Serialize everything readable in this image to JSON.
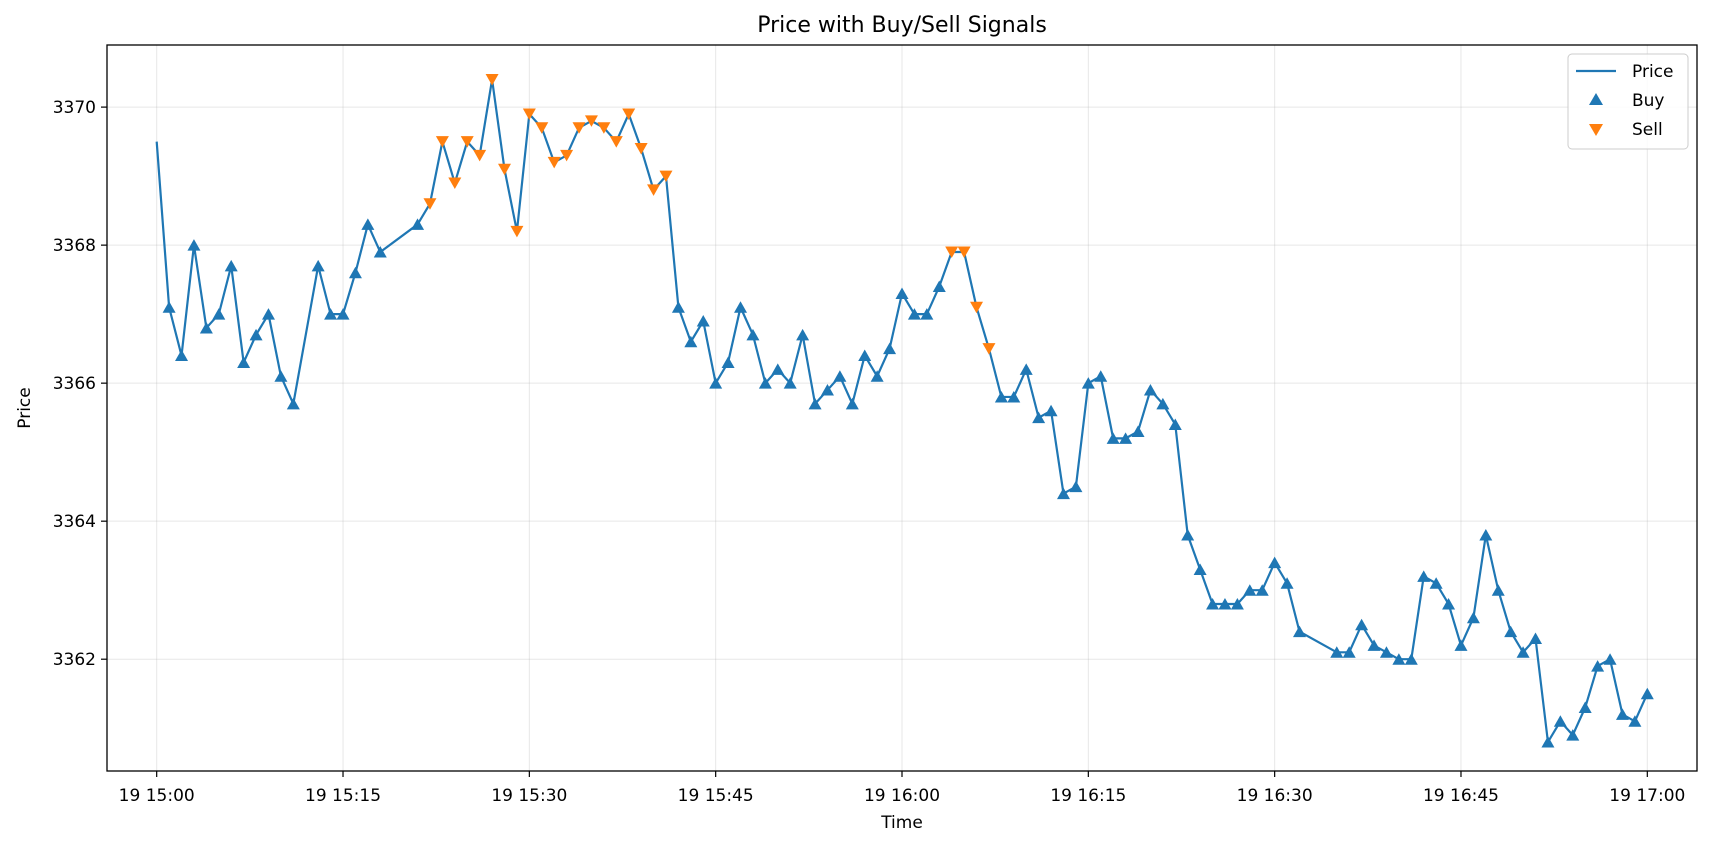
{
  "chart_data": {
    "type": "line",
    "title": "Price with Buy/Sell Signals",
    "xlabel": "Time",
    "ylabel": "Price",
    "date_label": "19",
    "x_range": [
      "15:00",
      "17:00"
    ],
    "xlim": [
      "14:56",
      "17:04"
    ],
    "ylim": [
      3360.38,
      3370.9
    ],
    "x_ticks": [
      "15:00",
      "15:15",
      "15:30",
      "15:45",
      "16:00",
      "16:15",
      "16:30",
      "16:45",
      "17:00"
    ],
    "x_tick_labels": [
      "19 15:00",
      "19 15:15",
      "19 15:30",
      "19 15:45",
      "19 16:00",
      "19 16:15",
      "19 16:30",
      "19 16:45",
      "19 17:00"
    ],
    "y_ticks": [
      3362,
      3364,
      3366,
      3368,
      3370
    ],
    "y_tick_labels": [
      "3362",
      "3364",
      "3366",
      "3368",
      "3370"
    ],
    "grid": true,
    "legend_position": "top-right",
    "series": [
      {
        "name": "Price",
        "kind": "line",
        "color": "#1f77b4",
        "points": [
          [
            "15:00",
            3369.5
          ],
          [
            "15:01",
            3367.1
          ],
          [
            "15:02",
            3366.4
          ],
          [
            "15:03",
            3368.0
          ],
          [
            "15:04",
            3366.8
          ],
          [
            "15:05",
            3367.0
          ],
          [
            "15:06",
            3367.7
          ],
          [
            "15:07",
            3366.3
          ],
          [
            "15:08",
            3366.7
          ],
          [
            "15:09",
            3367.0
          ],
          [
            "15:10",
            3366.1
          ],
          [
            "15:11",
            3365.7
          ],
          [
            "15:13",
            3367.7
          ],
          [
            "15:14",
            3367.0
          ],
          [
            "15:15",
            3367.0
          ],
          [
            "15:16",
            3367.6
          ],
          [
            "15:17",
            3368.3
          ],
          [
            "15:18",
            3367.9
          ],
          [
            "15:21",
            3368.3
          ],
          [
            "15:22",
            3368.6
          ],
          [
            "15:23",
            3369.5
          ],
          [
            "15:24",
            3368.9
          ],
          [
            "15:25",
            3369.5
          ],
          [
            "15:26",
            3369.3
          ],
          [
            "15:27",
            3370.4
          ],
          [
            "15:28",
            3369.1
          ],
          [
            "15:29",
            3368.2
          ],
          [
            "15:30",
            3369.9
          ],
          [
            "15:31",
            3369.7
          ],
          [
            "15:32",
            3369.2
          ],
          [
            "15:33",
            3369.3
          ],
          [
            "15:34",
            3369.7
          ],
          [
            "15:35",
            3369.8
          ],
          [
            "15:36",
            3369.7
          ],
          [
            "15:37",
            3369.5
          ],
          [
            "15:38",
            3369.9
          ],
          [
            "15:39",
            3369.4
          ],
          [
            "15:40",
            3368.8
          ],
          [
            "15:41",
            3369.0
          ],
          [
            "15:42",
            3367.1
          ],
          [
            "15:43",
            3366.6
          ],
          [
            "15:44",
            3366.9
          ],
          [
            "15:45",
            3366.0
          ],
          [
            "15:46",
            3366.3
          ],
          [
            "15:47",
            3367.1
          ],
          [
            "15:48",
            3366.7
          ],
          [
            "15:49",
            3366.0
          ],
          [
            "15:50",
            3366.2
          ],
          [
            "15:51",
            3366.0
          ],
          [
            "15:52",
            3366.7
          ],
          [
            "15:53",
            3365.7
          ],
          [
            "15:54",
            3365.9
          ],
          [
            "15:55",
            3366.1
          ],
          [
            "15:56",
            3365.7
          ],
          [
            "15:57",
            3366.4
          ],
          [
            "15:58",
            3366.1
          ],
          [
            "15:59",
            3366.5
          ],
          [
            "16:00",
            3367.3
          ],
          [
            "16:01",
            3367.0
          ],
          [
            "16:02",
            3367.0
          ],
          [
            "16:03",
            3367.4
          ],
          [
            "16:04",
            3367.9
          ],
          [
            "16:05",
            3367.9
          ],
          [
            "16:06",
            3367.1
          ],
          [
            "16:07",
            3366.5
          ],
          [
            "16:08",
            3365.8
          ],
          [
            "16:09",
            3365.8
          ],
          [
            "16:10",
            3366.2
          ],
          [
            "16:11",
            3365.5
          ],
          [
            "16:12",
            3365.6
          ],
          [
            "16:13",
            3364.4
          ],
          [
            "16:14",
            3364.5
          ],
          [
            "16:15",
            3366.0
          ],
          [
            "16:16",
            3366.1
          ],
          [
            "16:17",
            3365.2
          ],
          [
            "16:18",
            3365.2
          ],
          [
            "16:19",
            3365.3
          ],
          [
            "16:20",
            3365.9
          ],
          [
            "16:21",
            3365.7
          ],
          [
            "16:22",
            3365.4
          ],
          [
            "16:23",
            3363.8
          ],
          [
            "16:24",
            3363.3
          ],
          [
            "16:25",
            3362.8
          ],
          [
            "16:26",
            3362.8
          ],
          [
            "16:27",
            3362.8
          ],
          [
            "16:28",
            3363.0
          ],
          [
            "16:29",
            3363.0
          ],
          [
            "16:30",
            3363.4
          ],
          [
            "16:31",
            3363.1
          ],
          [
            "16:32",
            3362.4
          ],
          [
            "16:35",
            3362.1
          ],
          [
            "16:36",
            3362.1
          ],
          [
            "16:37",
            3362.5
          ],
          [
            "16:38",
            3362.2
          ],
          [
            "16:39",
            3362.1
          ],
          [
            "16:40",
            3362.0
          ],
          [
            "16:41",
            3362.0
          ],
          [
            "16:42",
            3363.2
          ],
          [
            "16:43",
            3363.1
          ],
          [
            "16:44",
            3362.8
          ],
          [
            "16:45",
            3362.2
          ],
          [
            "16:46",
            3362.6
          ],
          [
            "16:47",
            3363.8
          ],
          [
            "16:48",
            3363.0
          ],
          [
            "16:49",
            3362.4
          ],
          [
            "16:50",
            3362.1
          ],
          [
            "16:51",
            3362.3
          ],
          [
            "16:52",
            3360.8
          ],
          [
            "16:53",
            3361.1
          ],
          [
            "16:54",
            3360.9
          ],
          [
            "16:55",
            3361.3
          ],
          [
            "16:56",
            3361.9
          ],
          [
            "16:57",
            3362.0
          ],
          [
            "16:58",
            3361.2
          ],
          [
            "16:59",
            3361.1
          ],
          [
            "17:00",
            3361.5
          ]
        ]
      },
      {
        "name": "Buy",
        "kind": "scatter",
        "marker": "triangle-up",
        "color": "#1f77b4",
        "points": [
          [
            "15:01",
            3367.1
          ],
          [
            "15:02",
            3366.4
          ],
          [
            "15:03",
            3368.0
          ],
          [
            "15:04",
            3366.8
          ],
          [
            "15:05",
            3367.0
          ],
          [
            "15:06",
            3367.7
          ],
          [
            "15:07",
            3366.3
          ],
          [
            "15:08",
            3366.7
          ],
          [
            "15:09",
            3367.0
          ],
          [
            "15:10",
            3366.1
          ],
          [
            "15:11",
            3365.7
          ],
          [
            "15:13",
            3367.7
          ],
          [
            "15:14",
            3367.0
          ],
          [
            "15:15",
            3367.0
          ],
          [
            "15:16",
            3367.6
          ],
          [
            "15:17",
            3368.3
          ],
          [
            "15:18",
            3367.9
          ],
          [
            "15:21",
            3368.3
          ],
          [
            "15:42",
            3367.1
          ],
          [
            "15:43",
            3366.6
          ],
          [
            "15:44",
            3366.9
          ],
          [
            "15:45",
            3366.0
          ],
          [
            "15:46",
            3366.3
          ],
          [
            "15:47",
            3367.1
          ],
          [
            "15:48",
            3366.7
          ],
          [
            "15:49",
            3366.0
          ],
          [
            "15:50",
            3366.2
          ],
          [
            "15:51",
            3366.0
          ],
          [
            "15:52",
            3366.7
          ],
          [
            "15:53",
            3365.7
          ],
          [
            "15:54",
            3365.9
          ],
          [
            "15:55",
            3366.1
          ],
          [
            "15:56",
            3365.7
          ],
          [
            "15:57",
            3366.4
          ],
          [
            "15:58",
            3366.1
          ],
          [
            "15:59",
            3366.5
          ],
          [
            "16:00",
            3367.3
          ],
          [
            "16:01",
            3367.0
          ],
          [
            "16:02",
            3367.0
          ],
          [
            "16:03",
            3367.4
          ],
          [
            "16:08",
            3365.8
          ],
          [
            "16:09",
            3365.8
          ],
          [
            "16:10",
            3366.2
          ],
          [
            "16:11",
            3365.5
          ],
          [
            "16:12",
            3365.6
          ],
          [
            "16:13",
            3364.4
          ],
          [
            "16:14",
            3364.5
          ],
          [
            "16:15",
            3366.0
          ],
          [
            "16:16",
            3366.1
          ],
          [
            "16:17",
            3365.2
          ],
          [
            "16:18",
            3365.2
          ],
          [
            "16:19",
            3365.3
          ],
          [
            "16:20",
            3365.9
          ],
          [
            "16:21",
            3365.7
          ],
          [
            "16:22",
            3365.4
          ],
          [
            "16:23",
            3363.8
          ],
          [
            "16:24",
            3363.3
          ],
          [
            "16:25",
            3362.8
          ],
          [
            "16:26",
            3362.8
          ],
          [
            "16:27",
            3362.8
          ],
          [
            "16:28",
            3363.0
          ],
          [
            "16:29",
            3363.0
          ],
          [
            "16:30",
            3363.4
          ],
          [
            "16:31",
            3363.1
          ],
          [
            "16:32",
            3362.4
          ],
          [
            "16:35",
            3362.1
          ],
          [
            "16:36",
            3362.1
          ],
          [
            "16:37",
            3362.5
          ],
          [
            "16:38",
            3362.2
          ],
          [
            "16:39",
            3362.1
          ],
          [
            "16:40",
            3362.0
          ],
          [
            "16:41",
            3362.0
          ],
          [
            "16:42",
            3363.2
          ],
          [
            "16:43",
            3363.1
          ],
          [
            "16:44",
            3362.8
          ],
          [
            "16:45",
            3362.2
          ],
          [
            "16:46",
            3362.6
          ],
          [
            "16:47",
            3363.8
          ],
          [
            "16:48",
            3363.0
          ],
          [
            "16:49",
            3362.4
          ],
          [
            "16:50",
            3362.1
          ],
          [
            "16:51",
            3362.3
          ],
          [
            "16:52",
            3360.8
          ],
          [
            "16:53",
            3361.1
          ],
          [
            "16:54",
            3360.9
          ],
          [
            "16:55",
            3361.3
          ],
          [
            "16:56",
            3361.9
          ],
          [
            "16:57",
            3362.0
          ],
          [
            "16:58",
            3361.2
          ],
          [
            "16:59",
            3361.1
          ],
          [
            "17:00",
            3361.5
          ]
        ]
      },
      {
        "name": "Sell",
        "kind": "scatter",
        "marker": "triangle-down",
        "color": "#ff7f0e",
        "points": [
          [
            "15:22",
            3368.6
          ],
          [
            "15:23",
            3369.5
          ],
          [
            "15:24",
            3368.9
          ],
          [
            "15:25",
            3369.5
          ],
          [
            "15:26",
            3369.3
          ],
          [
            "15:27",
            3370.4
          ],
          [
            "15:28",
            3369.1
          ],
          [
            "15:29",
            3368.2
          ],
          [
            "15:30",
            3369.9
          ],
          [
            "15:31",
            3369.7
          ],
          [
            "15:32",
            3369.2
          ],
          [
            "15:33",
            3369.3
          ],
          [
            "15:34",
            3369.7
          ],
          [
            "15:35",
            3369.8
          ],
          [
            "15:36",
            3369.7
          ],
          [
            "15:37",
            3369.5
          ],
          [
            "15:38",
            3369.9
          ],
          [
            "15:39",
            3369.4
          ],
          [
            "15:40",
            3368.8
          ],
          [
            "15:41",
            3369.0
          ],
          [
            "16:04",
            3367.9
          ],
          [
            "16:05",
            3367.9
          ],
          [
            "16:06",
            3367.1
          ],
          [
            "16:07",
            3366.5
          ]
        ]
      }
    ]
  }
}
